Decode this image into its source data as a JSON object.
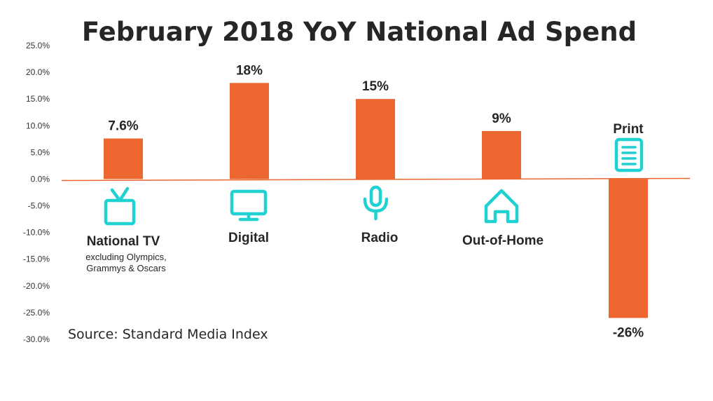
{
  "chart_data": {
    "type": "bar",
    "title": "February 2018 YoY National Ad Spend",
    "categories": [
      "National TV",
      "Digital",
      "Radio",
      "Out-of-Home",
      "Print"
    ],
    "category_notes": [
      "excluding Olympics,|Grammys & Oscars",
      "",
      "",
      "",
      ""
    ],
    "values": [
      7.6,
      18,
      15,
      9,
      -26
    ],
    "value_labels": [
      "7.6%",
      "18%",
      "15%",
      "9%",
      "-26%"
    ],
    "icons": [
      "tv-icon",
      "monitor-icon",
      "microphone-icon",
      "house-icon",
      "document-icon"
    ],
    "ylim": [
      -30,
      25
    ],
    "yticks": [
      25,
      20,
      15,
      10,
      5,
      0,
      -5,
      -10,
      -15,
      -20,
      -25,
      -30
    ],
    "ytick_labels": [
      "25.0%",
      "20.0%",
      "15.0%",
      "10.0%",
      "5.0%",
      "0.0%",
      "-5.0%",
      "-10.0%",
      "-15.0%",
      "-20.0%",
      "-25.0%",
      "-30.0%"
    ],
    "grid": false,
    "source": "Source: Standard Media Index",
    "colors": {
      "bar": "#EC6730",
      "icon": "#1FD1D1",
      "text": "#262626"
    }
  }
}
